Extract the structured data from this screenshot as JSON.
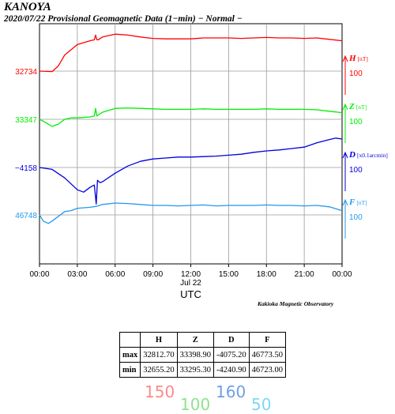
{
  "header": {
    "station": "KANOYA",
    "subtitle": "2020/07/22  Provisional Geomagnetic Data (1−min)  − Normal −"
  },
  "chart_data": {
    "type": "line",
    "x_ticks": [
      "00:00",
      "03:00",
      "06:00",
      "09:00",
      "12:00",
      "15:00",
      "18:00",
      "21:00",
      "00:00"
    ],
    "x_date_label": "Jul 22",
    "xlabel": "UTC",
    "x_range_hours": [
      0,
      24
    ],
    "grid": true,
    "series": [
      {
        "name": "H",
        "unit": "[nT]",
        "color": "#ff0000",
        "left_label": "32734",
        "scale_label": "100",
        "x": [
          0,
          1,
          1.5,
          2,
          3,
          4,
          4.35,
          4.45,
          4.55,
          4.65,
          5,
          6,
          7,
          8,
          9,
          10,
          11,
          12,
          13,
          14,
          15,
          16,
          17,
          18,
          19,
          20,
          21,
          22,
          23,
          24
        ],
        "y": [
          32734,
          32733,
          32745,
          32768,
          32790,
          32798,
          32800,
          32810,
          32800,
          32800,
          32806,
          32812,
          32810,
          32806,
          32803,
          32802,
          32802,
          32802,
          32804,
          32804,
          32804,
          32803,
          32804,
          32805,
          32804,
          32804,
          32803,
          32804,
          32801,
          32798
        ]
      },
      {
        "name": "Z",
        "unit": "[nT]",
        "color": "#00ee00",
        "left_label": "33347",
        "scale_label": "100",
        "x": [
          0,
          0.3,
          1,
          1.5,
          2,
          2.5,
          3,
          4,
          4.35,
          4.45,
          4.55,
          4.65,
          5,
          6,
          7,
          8,
          9,
          10,
          11,
          12,
          13,
          14,
          15,
          16,
          17,
          18,
          19,
          20,
          21,
          22,
          23,
          24
        ],
        "y": [
          33347,
          33343,
          33332,
          33337,
          33347,
          33350,
          33350,
          33352,
          33354,
          33370,
          33354,
          33356,
          33362,
          33370,
          33371,
          33370,
          33369,
          33368,
          33368,
          33368,
          33369,
          33368,
          33368,
          33368,
          33368,
          33369,
          33368,
          33368,
          33368,
          33367,
          33364,
          33361
        ]
      },
      {
        "name": "D",
        "unit": "[x0.1arcmin]",
        "color": "#0000dd",
        "left_label": "−4158",
        "scale_label": "100",
        "x": [
          0,
          1,
          2,
          3,
          3.5,
          4,
          4.35,
          4.5,
          4.6,
          4.8,
          5,
          6,
          7,
          8,
          9,
          10,
          11,
          12,
          13,
          14,
          15,
          16,
          17,
          18,
          19,
          20,
          21,
          22,
          23,
          23.5,
          24
        ],
        "y": [
          -4158,
          -4162,
          -4180,
          -4205,
          -4210,
          -4200,
          -4195,
          -4235,
          -4185,
          -4190,
          -4188,
          -4170,
          -4155,
          -4145,
          -4140,
          -4138,
          -4136,
          -4136,
          -4135,
          -4134,
          -4132,
          -4130,
          -4126,
          -4123,
          -4121,
          -4118,
          -4115,
          -4106,
          -4099,
          -4096,
          -4098
        ]
      },
      {
        "name": "F",
        "unit": "[nT]",
        "color": "#2299ee",
        "left_label": "46748",
        "scale_label": "100",
        "x": [
          0,
          0.3,
          0.7,
          1,
          1.5,
          2,
          2.5,
          3,
          4,
          4.5,
          5,
          6,
          7,
          8,
          9,
          10,
          11,
          12,
          13,
          14,
          15,
          16,
          17,
          18,
          19,
          20,
          21,
          22,
          23,
          24
        ],
        "y": [
          46748,
          46735,
          46730,
          46735,
          46745,
          46755,
          46757,
          46762,
          46764,
          46766,
          46770,
          46773,
          46772,
          46770,
          46768,
          46768,
          46767,
          46768,
          46769,
          46767,
          46768,
          46768,
          46768,
          46769,
          46768,
          46768,
          46767,
          46768,
          46765,
          46757
        ]
      }
    ]
  },
  "credit": "Kakioka Magnetic Observatory",
  "stats_table": {
    "columns": [
      "",
      "H",
      "Z",
      "D",
      "F"
    ],
    "rows": [
      [
        "max",
        "32812.70",
        "33398.90",
        "-4075.20",
        "46773.50"
      ],
      [
        "min",
        "32655.20",
        "33295.30",
        "-4240.90",
        "46723.00"
      ]
    ]
  },
  "handwritten": [
    {
      "text": "150",
      "color": "#ff8a8a"
    },
    {
      "text": "100",
      "color": "#8ee38e"
    },
    {
      "text": "160",
      "color": "#6f9fe6"
    },
    {
      "text": "50",
      "color": "#7fd6f2"
    }
  ]
}
